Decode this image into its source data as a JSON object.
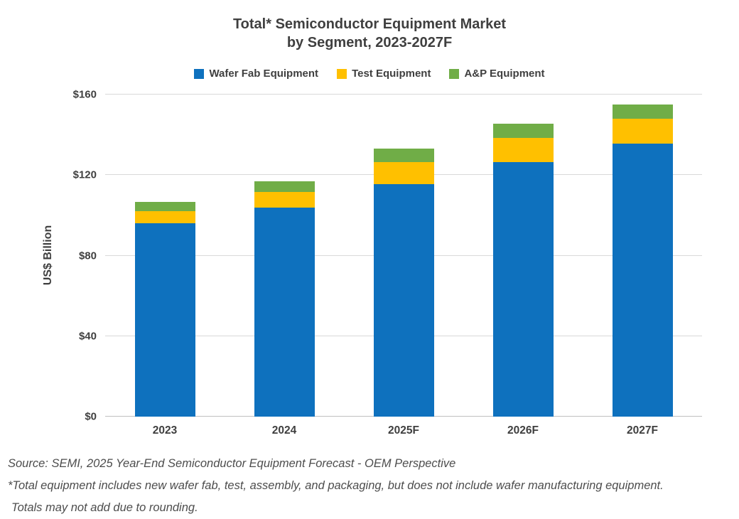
{
  "title": {
    "line1": "Total* Semiconductor Equipment Market",
    "line2": "by Segment, 2023-2027F"
  },
  "legend": {
    "items": [
      {
        "label": "Wafer Fab Equipment",
        "color": "#0e71be"
      },
      {
        "label": "Test Equipment",
        "color": "#ffc000"
      },
      {
        "label": "A&P Equipment",
        "color": "#70ad47"
      }
    ]
  },
  "y_axis": {
    "label": "US$ Billion",
    "tick_values": [
      0,
      40,
      80,
      120,
      160
    ],
    "tick_labels": [
      "$0",
      "$40",
      "$80",
      "$120",
      "$160"
    ]
  },
  "chart_data": {
    "type": "bar",
    "stacked": true,
    "title": "Total* Semiconductor Equipment Market by Segment, 2023-2027F",
    "xlabel": "",
    "ylabel": "US$ Billion",
    "ylim": [
      0,
      160
    ],
    "yticks": [
      0,
      40,
      80,
      120,
      160
    ],
    "grid": true,
    "legend_position": "top",
    "categories": [
      "2023",
      "2024",
      "2025F",
      "2026F",
      "2027F"
    ],
    "series": [
      {
        "name": "Wafer Fab Equipment",
        "color": "#0e71be",
        "values": [
          96,
          104,
          115.5,
          126.5,
          135.5
        ]
      },
      {
        "name": "Test Equipment",
        "color": "#ffc000",
        "values": [
          6,
          7.5,
          11,
          12,
          12.5
        ]
      },
      {
        "name": "A&P Equipment",
        "color": "#70ad47",
        "values": [
          4.5,
          5.5,
          6.5,
          7,
          7
        ]
      }
    ],
    "totals": [
      106.5,
      117,
      133,
      145.5,
      155
    ],
    "units": "US$ Billion"
  },
  "colors": {
    "text_dark": "#3f3f3f",
    "gridline": "#d9d9d9",
    "axis_line": "#bfbfbf",
    "footer_text": "#4d4d4d"
  },
  "footer": {
    "line1": "Source: SEMI, 2025 Year-End Semiconductor Equipment Forecast - OEM Perspective",
    "line2": "*Total equipment includes new wafer fab, test, assembly, and packaging, but does not include wafer manufacturing equipment.",
    "line3": "Totals may not add due to rounding."
  }
}
